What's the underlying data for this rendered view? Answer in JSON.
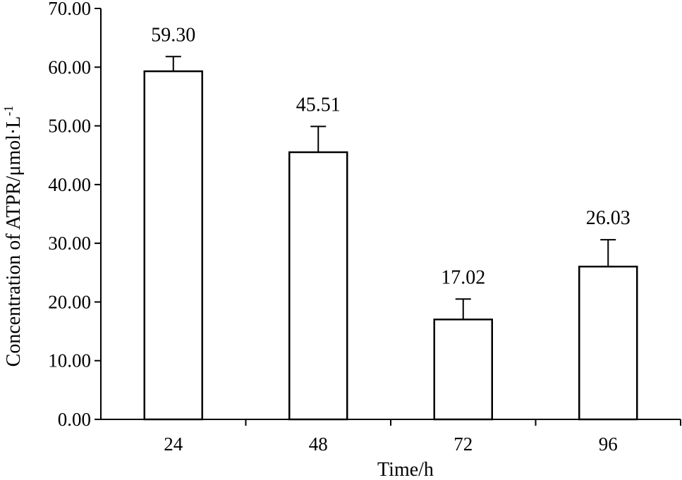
{
  "chart_data": {
    "type": "bar",
    "categories": [
      "24",
      "48",
      "72",
      "96"
    ],
    "values": [
      59.3,
      45.51,
      17.02,
      26.03
    ],
    "error_upper": [
      61.8,
      49.9,
      20.5,
      30.6
    ],
    "data_labels": [
      "59.30",
      "45.51",
      "17.02",
      "26.03"
    ],
    "xlabel": "Time/h",
    "ylabel": "Concentration of ATPR/μmol·L",
    "ylabel_superscript": "-1",
    "ylim": [
      0,
      70
    ],
    "yticks": [
      0,
      10,
      20,
      30,
      40,
      50,
      60,
      70
    ],
    "ytick_labels": [
      "0.00",
      "10.00",
      "20.00",
      "30.00",
      "40.00",
      "50.00",
      "60.00",
      "70.00"
    ],
    "grid": false,
    "bar_fill": "#ffffff",
    "line_color": "#000000"
  }
}
